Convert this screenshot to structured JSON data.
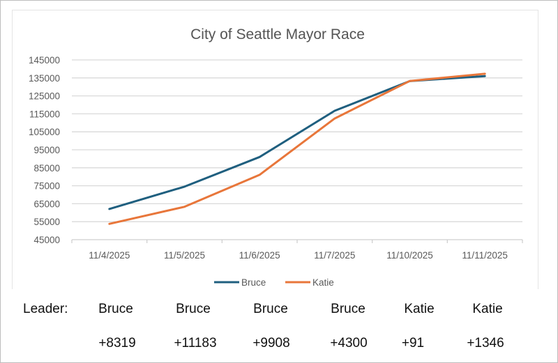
{
  "chart_data": {
    "type": "line",
    "title": "City of Seattle Mayor Race",
    "xlabel": "",
    "ylabel": "",
    "categories": [
      "11/4/2025",
      "11/5/2025",
      "11/6/2025",
      "11/7/2025",
      "11/10/2025",
      "11/11/2025"
    ],
    "ylim": [
      45000,
      145000
    ],
    "yticks": [
      "45000",
      "55000",
      "65000",
      "75000",
      "85000",
      "95000",
      "105000",
      "115000",
      "125000",
      "135000",
      "145000"
    ],
    "grid": true,
    "legend_position": "bottom",
    "series": [
      {
        "name": "Bruce",
        "color": "#1f5f7f",
        "values": [
          62100,
          74500,
          91000,
          116700,
          133200,
          136000
        ]
      },
      {
        "name": "Katie",
        "color": "#e8763a",
        "values": [
          53800,
          63300,
          81100,
          112400,
          133300,
          137300
        ]
      }
    ]
  },
  "leader_table": {
    "label": "Leader:",
    "leaders": [
      "Bruce",
      "Bruce",
      "Bruce",
      "Bruce",
      "Katie",
      "Katie"
    ],
    "margins": [
      "+8319",
      "+11183",
      "+9908",
      "+4300",
      "+91",
      "+1346"
    ]
  }
}
